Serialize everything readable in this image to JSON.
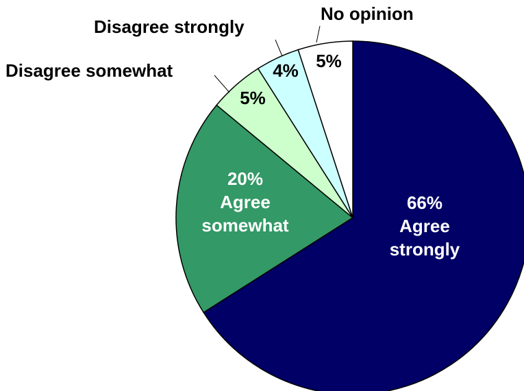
{
  "chart_data": {
    "type": "pie",
    "start": "12 o'clock, clockwise",
    "slices": [
      {
        "name": "Agree strongly",
        "value": 66,
        "value_label": "66%",
        "color": "#000066",
        "text_color": "#ffffff"
      },
      {
        "name": "Agree somewhat",
        "value": 20,
        "value_label": "20%",
        "color": "#339966",
        "text_color": "#ffffff"
      },
      {
        "name": "Disagree somewhat",
        "value": 5,
        "value_label": "5%",
        "color": "#ccffcc",
        "text_color": "#000000"
      },
      {
        "name": "Disagree strongly",
        "value": 4,
        "value_label": "4%",
        "color": "#ccffff",
        "text_color": "#000000"
      },
      {
        "name": "No opinion",
        "value": 5,
        "value_label": "5%",
        "color": "#ffffff",
        "text_color": "#000000"
      }
    ]
  }
}
